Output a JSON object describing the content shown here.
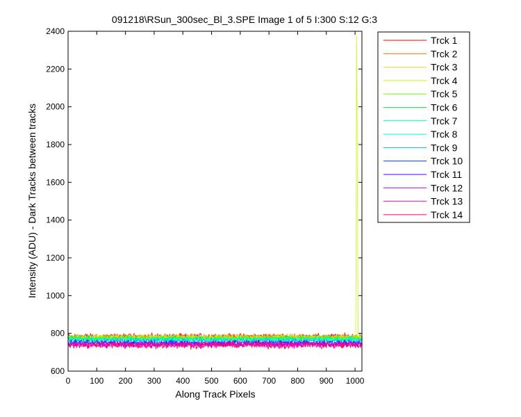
{
  "chart_data": {
    "type": "line",
    "title": "091218\\RSun_300sec_Bl_3.SPE  Image 1 of 5  I:300  S:12  G:3",
    "xlabel": "Along Track Pixels",
    "ylabel": "Intensity (ADU) - Dark Tracks between tracks",
    "xlim": [
      0,
      1024
    ],
    "ylim": [
      600,
      2400
    ],
    "xticks": [
      0,
      100,
      200,
      300,
      400,
      500,
      600,
      700,
      800,
      900,
      1000
    ],
    "yticks": [
      600,
      800,
      1000,
      1200,
      1400,
      1600,
      1800,
      2000,
      2200,
      2400
    ],
    "grid": false,
    "legend_position": "outside-top-right",
    "series": [
      {
        "name": "Trck 1",
        "color": "#ff0000",
        "baseline": 785,
        "noise": 10
      },
      {
        "name": "Trck 2",
        "color": "#ff6a00",
        "baseline": 782,
        "noise": 10
      },
      {
        "name": "Trck 3",
        "color": "#ffd400",
        "baseline": 780,
        "noise": 10
      },
      {
        "name": "Trck 4",
        "color": "#c8ff00",
        "baseline": 778,
        "noise": 10,
        "spike": {
          "x": [
            1003,
            1006,
            1008,
            1011
          ],
          "y": [
            1080,
            2380,
            1660,
            780
          ]
        }
      },
      {
        "name": "Trck 5",
        "color": "#6aff00",
        "baseline": 776,
        "noise": 10
      },
      {
        "name": "Trck 6",
        "color": "#00ff40",
        "baseline": 772,
        "noise": 10
      },
      {
        "name": "Trck 7",
        "color": "#00ffa0",
        "baseline": 770,
        "noise": 10
      },
      {
        "name": "Trck 8",
        "color": "#00ffe0",
        "baseline": 765,
        "noise": 10
      },
      {
        "name": "Trck 9",
        "color": "#00b4ff",
        "baseline": 760,
        "noise": 10
      },
      {
        "name": "Trck 10",
        "color": "#0030ff",
        "baseline": 750,
        "noise": 10
      },
      {
        "name": "Trck 11",
        "color": "#4a00ff",
        "baseline": 745,
        "noise": 12
      },
      {
        "name": "Trck 12",
        "color": "#b400ff",
        "baseline": 742,
        "noise": 12
      },
      {
        "name": "Trck 13",
        "color": "#ff00d4",
        "baseline": 740,
        "noise": 12
      },
      {
        "name": "Trck 14",
        "color": "#ff0050",
        "baseline": 738,
        "noise": 14
      }
    ]
  }
}
